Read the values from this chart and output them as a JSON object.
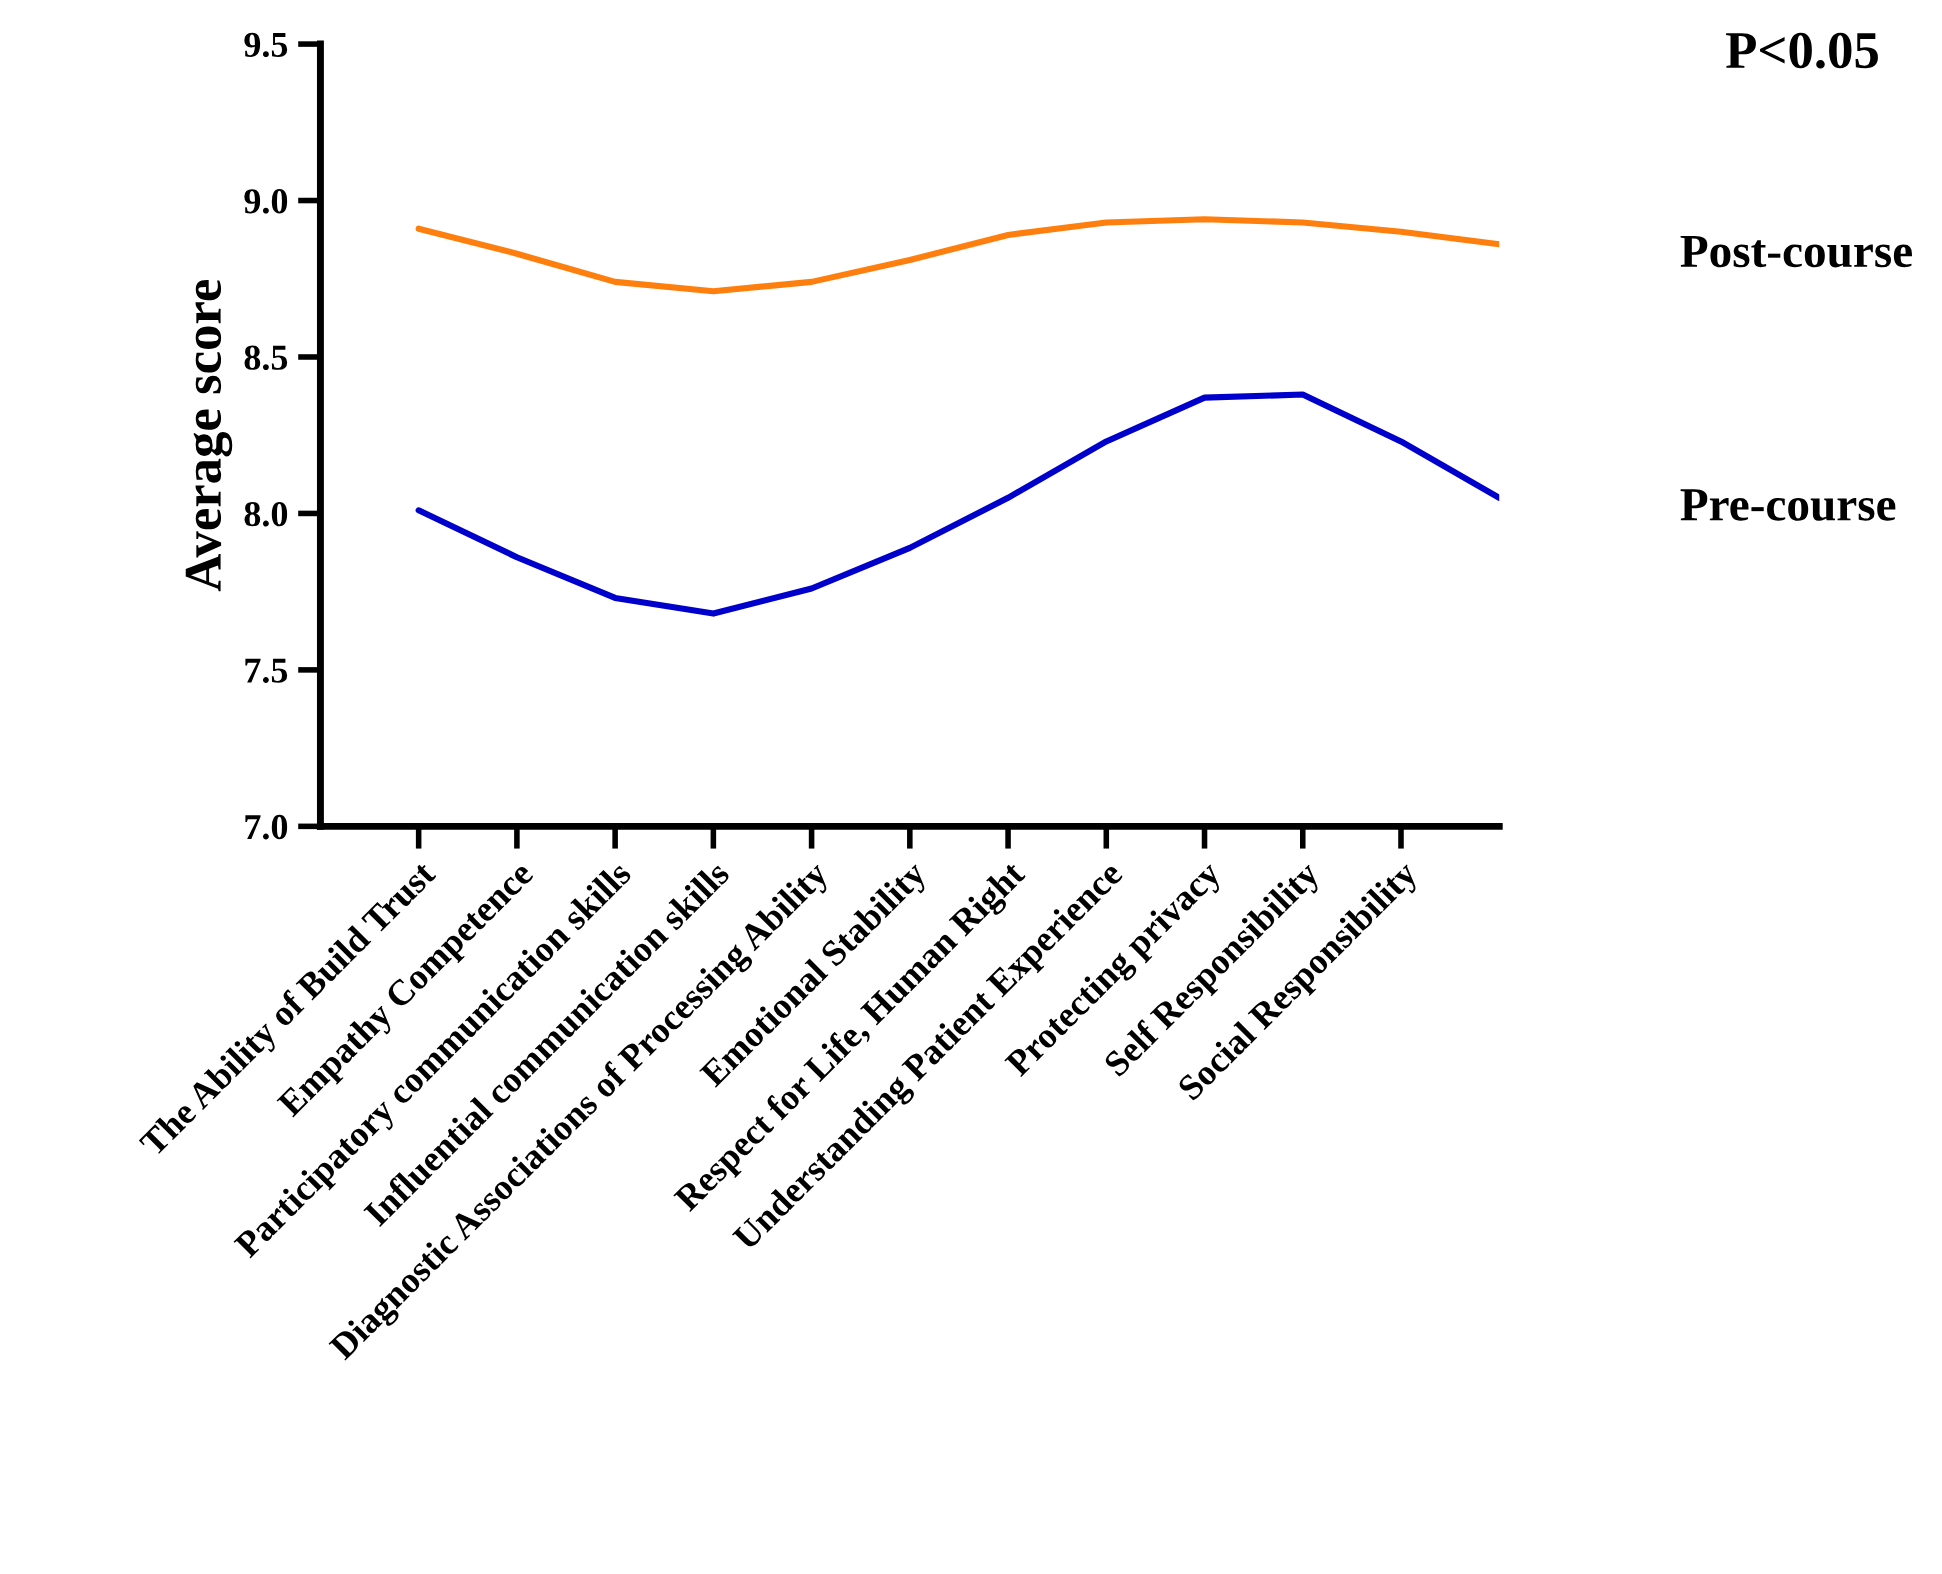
{
  "chart_data": {
    "type": "line",
    "ylabel": "Average score",
    "categories": [
      "The Ability of Build Trust",
      "Empathy Competence",
      "Participatory communication skills",
      "Influential communication skills",
      "Diagnostic Associations of Processing Ability",
      "Emotional Stability",
      "Respect for Life, Human Right",
      "Understanding Patient Experience",
      "Protecting privacy",
      "Self Responsibility",
      "Social Responsibility",
      null
    ],
    "series": [
      {
        "name": "Post-course",
        "color": "#ff7f0e",
        "values": [
          8.91,
          8.83,
          8.74,
          8.71,
          8.74,
          8.81,
          8.89,
          8.93,
          8.94,
          8.93,
          8.9,
          8.86
        ]
      },
      {
        "name": "Pre-course",
        "color": "#0000cc",
        "values": [
          8.01,
          7.86,
          7.73,
          7.68,
          7.76,
          7.89,
          8.05,
          8.23,
          8.37,
          8.38,
          8.23,
          8.05
        ]
      }
    ],
    "ylim": [
      7.0,
      9.5
    ],
    "yticks": [
      {
        "value": 7.0,
        "label": "7.0"
      },
      {
        "value": 7.5,
        "label": "7.5"
      },
      {
        "value": 8.0,
        "label": "8.0"
      },
      {
        "value": 8.5,
        "label": "8.5"
      },
      {
        "value": 9.0,
        "label": "9.0"
      },
      {
        "value": 9.5,
        "label": "9.5"
      }
    ],
    "annotations": [
      "P<0.05"
    ],
    "grid": false,
    "legend": "right",
    "marker": "none",
    "line_style": "solid"
  }
}
